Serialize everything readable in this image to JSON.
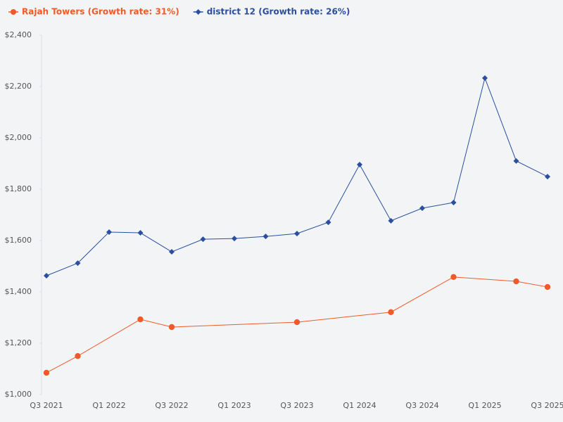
{
  "chart_data": {
    "type": "line",
    "categories": [
      "Q3 2021",
      null,
      "Q1 2022",
      null,
      "Q3 2022",
      null,
      "Q1 2023",
      null,
      "Q3 2023",
      null,
      "Q1 2024",
      null,
      "Q3 2024",
      null,
      "Q1 2025",
      null,
      "Q3 2025"
    ],
    "series": [
      {
        "name": "Rajah Towers (Growth rate: 31%)",
        "color": "#f05a28",
        "marker": "circle",
        "values": [
          1085,
          1150,
          null,
          1293,
          1263,
          null,
          null,
          null,
          1282,
          null,
          null,
          1321,
          null,
          1458,
          null,
          1441,
          1419
        ]
      },
      {
        "name": "district 12 (Growth rate: 26%)",
        "color": "#2a4f9e",
        "marker": "diamond",
        "values": [
          1463,
          1512,
          1633,
          1630,
          1556,
          1605,
          1608,
          1616,
          1627,
          1671,
          1896,
          1677,
          1726,
          1748,
          2233,
          1910,
          1849
        ]
      }
    ],
    "connect_gaps": true,
    "ylim": [
      1000,
      2400
    ],
    "yticks": [
      {
        "value": 1000,
        "label": "$1,000"
      },
      {
        "value": 1200,
        "label": "$1,200"
      },
      {
        "value": 1400,
        "label": "$1,400"
      },
      {
        "value": 1600,
        "label": "$1,600"
      },
      {
        "value": 1800,
        "label": "$1,800"
      },
      {
        "value": 2000,
        "label": "$2,000"
      },
      {
        "value": 2200,
        "label": "$2,200"
      },
      {
        "value": 2400,
        "label": "$2,400"
      }
    ],
    "grid": false,
    "legend": "top-left"
  }
}
